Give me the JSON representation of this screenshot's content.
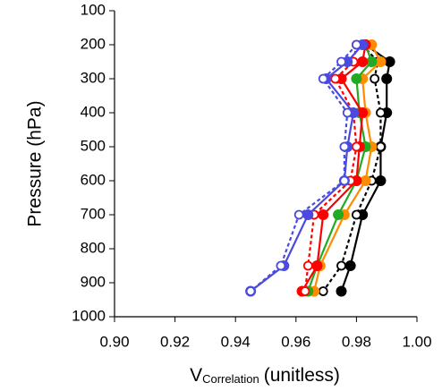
{
  "chart_data": {
    "type": "line",
    "x_label_main": "V",
    "x_label_sub": "Correlation",
    "x_label_unit": "(unitless)",
    "y_label": "Pressure (hPa)",
    "y": [
      200,
      250,
      300,
      400,
      500,
      600,
      700,
      850,
      925
    ],
    "series": [
      {
        "color": "#000000",
        "dashed": false,
        "marker": "filled",
        "values": [
          0.983,
          0.991,
          0.99,
          0.99,
          0.988,
          0.988,
          0.982,
          0.978,
          0.975
        ]
      },
      {
        "color": "#000000",
        "dashed": true,
        "marker": "open",
        "values": [
          0.982,
          0.987,
          0.986,
          0.988,
          0.988,
          0.985,
          0.98,
          0.975,
          0.969
        ]
      },
      {
        "color": "#ff8c00",
        "dashed": false,
        "marker": "filled",
        "values": [
          0.985,
          0.988,
          0.982,
          0.983,
          0.985,
          0.983,
          0.976,
          0.968,
          0.966
        ]
      },
      {
        "color": "#22aa22",
        "dashed": false,
        "marker": "filled",
        "values": [
          0.983,
          0.985,
          0.98,
          0.981,
          0.983,
          0.98,
          0.974,
          0.967,
          0.964
        ]
      },
      {
        "color": "#ff0000",
        "dashed": false,
        "marker": "filled",
        "values": [
          0.983,
          0.982,
          0.975,
          0.982,
          0.981,
          0.98,
          0.969,
          0.967,
          0.962
        ]
      },
      {
        "color": "#ff0000",
        "dashed": true,
        "marker": "open",
        "values": [
          0.98,
          0.979,
          0.973,
          0.979,
          0.98,
          0.978,
          0.966,
          0.964,
          0.963
        ]
      },
      {
        "color": "#4a4adf",
        "dashed": false,
        "marker": "filled",
        "values": [
          0.982,
          0.977,
          0.97,
          0.979,
          0.977,
          0.976,
          0.964,
          0.956,
          0.945
        ]
      },
      {
        "color": "#4a4adf",
        "dashed": true,
        "marker": "open",
        "values": [
          0.98,
          0.975,
          0.969,
          0.977,
          0.976,
          0.976,
          0.961,
          0.955,
          0.945
        ]
      }
    ],
    "xlim": [
      0.9,
      1.0
    ],
    "xticks": [
      {
        "value": 0.9,
        "label": "0.90"
      },
      {
        "value": 0.92,
        "label": "0.92"
      },
      {
        "value": 0.94,
        "label": "0.94"
      },
      {
        "value": 0.96,
        "label": "0.96"
      },
      {
        "value": 0.98,
        "label": "0.98"
      },
      {
        "value": 1.0,
        "label": "1.00"
      }
    ],
    "ylim": [
      100,
      1000
    ],
    "yticks": [
      100,
      200,
      300,
      400,
      500,
      600,
      700,
      800,
      900,
      1000
    ],
    "y_inverted": true
  }
}
